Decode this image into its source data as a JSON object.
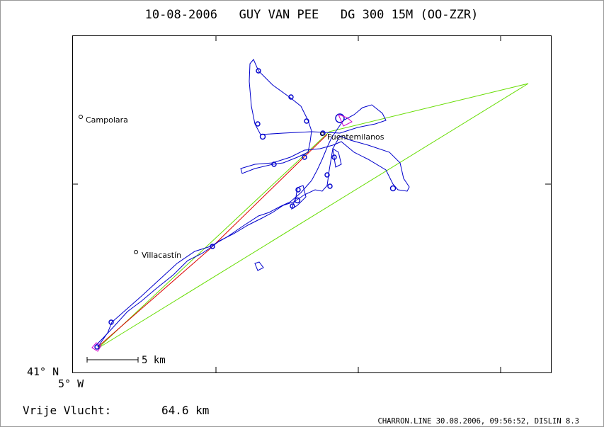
{
  "header": {
    "title": "10-08-2006   GUY VAN PEE   DG 300 15M (OO-ZZR)"
  },
  "map": {
    "places": [
      {
        "name": "Campolara"
      },
      {
        "name": "Villacastín"
      },
      {
        "name": "Fuentemilanos"
      }
    ],
    "scale_label": "5 km",
    "axis": {
      "lat_label": "41° N",
      "lon_label": "5° W"
    },
    "colors": {
      "track": "#0000cc",
      "task": "#66dd00",
      "free_flight": "#dd0000",
      "marker": "#cc00cc",
      "frame": "#000000"
    }
  },
  "footer": {
    "distance_label": "Vrije Vlucht:",
    "distance_value": "64.6 km",
    "software": "CHARRON.LINE 30.08.2006, 09:56:52, DISLIN 8.3"
  }
}
